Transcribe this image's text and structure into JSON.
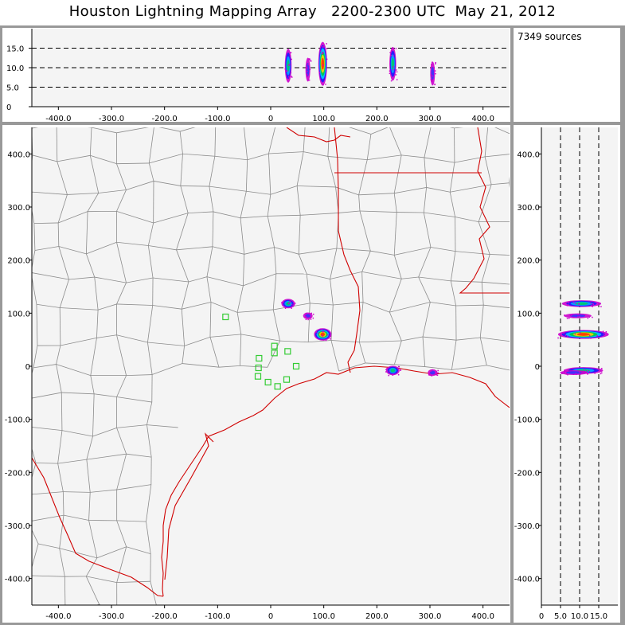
{
  "title": "Houston Lightning Mapping Array   2200-2300 UTC  May 21, 2012",
  "source_count": "7349 sources",
  "colors": {
    "panel_bg": "#f4f4f4",
    "frame": "#999999",
    "county": "#8c8c8c",
    "coast_state": "#d00000",
    "station": "#33cc33"
  },
  "axes": {
    "x_ticks": [
      "-400.0",
      "-300.0",
      "-200.0",
      "-100.0",
      "0",
      "100.0",
      "200.0",
      "300.0",
      "400.0"
    ],
    "y_ticks": [
      "400.0",
      "300.0",
      "200.0",
      "100.0",
      "0",
      "-100.0",
      "-200.0",
      "-300.0",
      "-400.0"
    ],
    "alt_ticks": [
      "15.0",
      "10.0",
      "5.0",
      "0"
    ],
    "alt_ticks_h": [
      "0",
      "5.0",
      "10.0",
      "15.0"
    ],
    "xlim": [
      -450,
      450
    ],
    "ylim": [
      -450,
      450
    ],
    "alt_lim": [
      0,
      20
    ],
    "alt_gridlines": [
      5,
      10,
      15
    ]
  },
  "lightning_clusters": [
    {
      "name": "cluster-1",
      "x": 33,
      "y": 118,
      "alt": 10.5,
      "intensity": "medium"
    },
    {
      "name": "cluster-2",
      "x": 70,
      "y": 95,
      "alt": 9.5,
      "intensity": "low"
    },
    {
      "name": "cluster-3",
      "x": 98,
      "y": 60,
      "alt": 11,
      "intensity": "high"
    },
    {
      "name": "cluster-4",
      "x": 230,
      "y": -8,
      "alt": 11,
      "intensity": "medium"
    },
    {
      "name": "cluster-5",
      "x": 305,
      "y": -12,
      "alt": 8.5,
      "intensity": "low"
    }
  ],
  "stations": [
    {
      "name": "station-1",
      "x": -85,
      "y": 93
    },
    {
      "name": "station-2",
      "x": -22,
      "y": 15
    },
    {
      "name": "station-3",
      "x": 7,
      "y": 25
    },
    {
      "name": "station-4",
      "x": 7,
      "y": 38
    },
    {
      "name": "station-5",
      "x": 32,
      "y": 28
    },
    {
      "name": "station-6",
      "x": 48,
      "y": 0
    },
    {
      "name": "station-7",
      "x": -23,
      "y": -3
    },
    {
      "name": "station-8",
      "x": -24,
      "y": -19
    },
    {
      "name": "station-9",
      "x": -5,
      "y": -30
    },
    {
      "name": "station-10",
      "x": 13,
      "y": -38
    },
    {
      "name": "station-11",
      "x": 30,
      "y": -25
    }
  ]
}
